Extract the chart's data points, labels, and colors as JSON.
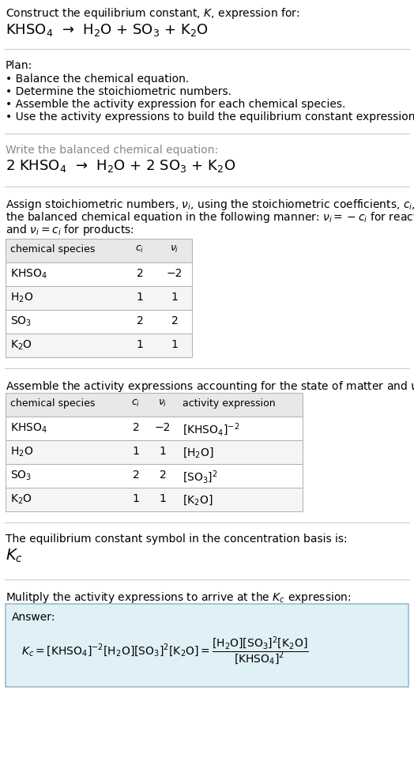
{
  "title_line1": "Construct the equilibrium constant, $K$, expression for:",
  "title_line2": "KHSO$_4$  →  H$_2$O + SO$_3$ + K$_2$O",
  "plan_header": "Plan:",
  "plan_bullets": [
    "• Balance the chemical equation.",
    "• Determine the stoichiometric numbers.",
    "• Assemble the activity expression for each chemical species.",
    "• Use the activity expressions to build the equilibrium constant expression."
  ],
  "balanced_header": "Write the balanced chemical equation:",
  "balanced_eq": "2 KHSO$_4$  →  H$_2$O + 2 SO$_3$ + K$_2$O",
  "stoich_header_lines": [
    "Assign stoichiometric numbers, $\\nu_i$, using the stoichiometric coefficients, $c_i$, from",
    "the balanced chemical equation in the following manner: $\\nu_i = -c_i$ for reactants",
    "and $\\nu_i = c_i$ for products:"
  ],
  "table1_headers": [
    "chemical species",
    "$c_i$",
    "$\\nu_i$"
  ],
  "table1_rows": [
    [
      "KHSO$_4$",
      "2",
      "−2"
    ],
    [
      "H$_2$O",
      "1",
      "1"
    ],
    [
      "SO$_3$",
      "2",
      "2"
    ],
    [
      "K$_2$O",
      "1",
      "1"
    ]
  ],
  "activity_header": "Assemble the activity expressions accounting for the state of matter and $\\nu_i$:",
  "table2_headers": [
    "chemical species",
    "$c_i$",
    "$\\nu_i$",
    "activity expression"
  ],
  "table2_rows": [
    [
      "KHSO$_4$",
      "2",
      "−2",
      "[KHSO$_4$]$^{-2}$"
    ],
    [
      "H$_2$O",
      "1",
      "1",
      "[H$_2$O]"
    ],
    [
      "SO$_3$",
      "2",
      "2",
      "[SO$_3$]$^2$"
    ],
    [
      "K$_2$O",
      "1",
      "1",
      "[K$_2$O]"
    ]
  ],
  "kc_symbol_header": "The equilibrium constant symbol in the concentration basis is:",
  "kc_symbol": "$K_c$",
  "multiply_header": "Mulitply the activity expressions to arrive at the $K_c$ expression:",
  "answer_label": "Answer:",
  "bg_color": "#ffffff",
  "table_border_color": "#b0b0b0",
  "table_header_bg": "#e8e8e8",
  "table_row_bg_even": "#ffffff",
  "table_row_bg_odd": "#f5f5f5",
  "answer_box_bg": "#dff0f7",
  "answer_box_border": "#9bbccc",
  "separator_color": "#cccccc"
}
